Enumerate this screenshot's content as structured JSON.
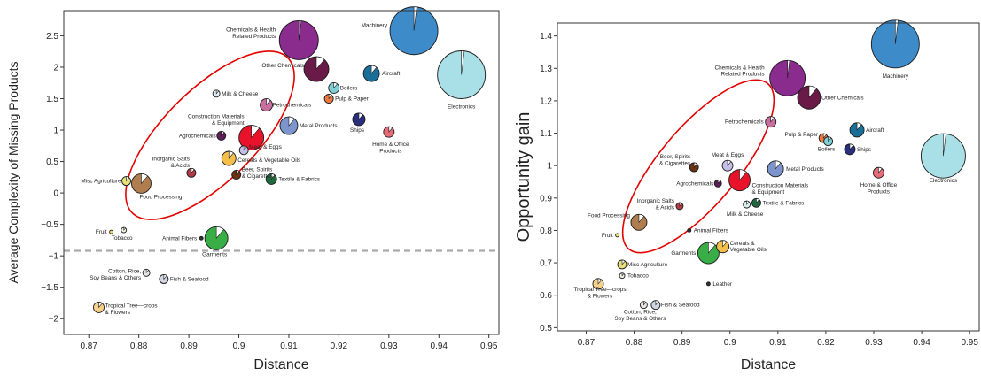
{
  "chart_data": [
    {
      "type": "scatter",
      "title": "",
      "xlabel": "Distance",
      "ylabel": "Average Complexity of Missing Products",
      "xlim": [
        0.865,
        0.952
      ],
      "ylim": [
        -2.25,
        2.9
      ],
      "xticks": [
        "0.87",
        "0.88",
        "0.89",
        "0.9",
        "0.91",
        "0.92",
        "0.93",
        "0.94",
        "0.95"
      ],
      "yticks": [
        "2.5",
        "2",
        "1.5",
        "1",
        "0.5",
        "0",
        "−0.5",
        "−1",
        "−1.5",
        "−2"
      ],
      "reference_line_y": -0.92,
      "highlight_ellipse": true,
      "points": [
        {
          "label": "Machinery",
          "x": 0.935,
          "y": 2.58,
          "color": "#3d8cc9",
          "size": 27
        },
        {
          "label": "Electronics",
          "x": 0.9445,
          "y": 1.88,
          "color": "#a9dfe6",
          "size": 27
        },
        {
          "label": "Chemicals & Health\nRelated Products",
          "x": 0.912,
          "y": 2.43,
          "color": "#8a2b8e",
          "size": 22
        },
        {
          "label": "Other Chemicals",
          "x": 0.9155,
          "y": 1.97,
          "color": "#6a1a47",
          "size": 14
        },
        {
          "label": "Aircraft",
          "x": 0.9265,
          "y": 1.9,
          "color": "#1a6f99",
          "size": 9
        },
        {
          "label": "Boilers",
          "x": 0.919,
          "y": 1.67,
          "color": "#7ecfd6",
          "size": 6
        },
        {
          "label": "Pulp & Paper",
          "x": 0.918,
          "y": 1.5,
          "color": "#f07a3f",
          "size": 5
        },
        {
          "label": "Milk & Cheese",
          "x": 0.8955,
          "y": 1.58,
          "color": "#ddeef0",
          "size": 4
        },
        {
          "label": "Petrochemicals",
          "x": 0.9055,
          "y": 1.4,
          "color": "#c86fa0",
          "size": 7
        },
        {
          "label": "Ships",
          "x": 0.924,
          "y": 1.17,
          "color": "#2a2f7d",
          "size": 7
        },
        {
          "label": "Metal Products",
          "x": 0.91,
          "y": 1.07,
          "color": "#7d95cc",
          "size": 10
        },
        {
          "label": "Construction Materials\n& Equipment",
          "x": 0.9025,
          "y": 0.88,
          "color": "#e8132a",
          "size": 14
        },
        {
          "label": "Agrochemicals",
          "x": 0.8965,
          "y": 0.91,
          "color": "#5c1e56",
          "size": 5
        },
        {
          "label": "Home & Office\nProducts",
          "x": 0.93,
          "y": 0.97,
          "color": "#e86b78",
          "size": 6
        },
        {
          "label": "Meat & Eggs",
          "x": 0.901,
          "y": 0.68,
          "color": "#c6c0e8",
          "size": 5
        },
        {
          "label": "Cereals & Vegetable Oils",
          "x": 0.898,
          "y": 0.55,
          "color": "#f5c04a",
          "size": 8
        },
        {
          "label": "Inorganic Salts\n& Acids",
          "x": 0.8905,
          "y": 0.32,
          "color": "#b23b4a",
          "size": 5
        },
        {
          "label": "Beer, Spirits\n& Cigarettes",
          "x": 0.8995,
          "y": 0.29,
          "color": "#6b3214",
          "size": 5
        },
        {
          "label": "Textile & Fabrics",
          "x": 0.9065,
          "y": 0.22,
          "color": "#1f6b3f",
          "size": 6
        },
        {
          "label": "Misc Agriculture",
          "x": 0.8775,
          "y": 0.19,
          "color": "#e8e07a",
          "size": 5
        },
        {
          "label": "Food Processing",
          "x": 0.8805,
          "y": 0.15,
          "color": "#b07d4e",
          "size": 11
        },
        {
          "label": "Fruit",
          "x": 0.8745,
          "y": -0.62,
          "color": "#f0e070",
          "size": 2
        },
        {
          "label": "Tobacco",
          "x": 0.877,
          "y": -0.59,
          "color": "#f1f1e4",
          "size": 3
        },
        {
          "label": "Animal Fibers",
          "x": 0.8925,
          "y": -0.72,
          "color": "#333333",
          "size": 2
        },
        {
          "label": "Garments",
          "x": 0.8955,
          "y": -0.72,
          "color": "#3aae46",
          "size": 13
        },
        {
          "label": "Cotton, Rice,\nSoy Beans & Others",
          "x": 0.8815,
          "y": -1.27,
          "color": "#e6e6e6",
          "size": 4
        },
        {
          "label": "Fish & Seafood",
          "x": 0.885,
          "y": -1.37,
          "color": "#d0d6e2",
          "size": 5
        },
        {
          "label": "Tropical Tree—crops\n& Flowers",
          "x": 0.872,
          "y": -1.82,
          "color": "#f7d18a",
          "size": 6
        }
      ]
    },
    {
      "type": "scatter",
      "title": "",
      "xlabel": "Distance",
      "ylabel": "Opportunity gain",
      "xlim": [
        0.864,
        0.952
      ],
      "ylim": [
        0.49,
        1.44
      ],
      "xticks": [
        "0.87",
        "0.88",
        "0.89",
        "0.9",
        "0.91",
        "0.92",
        "0.93",
        "0.94",
        "0.95"
      ],
      "yticks": [
        "1.4",
        "1.3",
        "1.2",
        "1.1",
        "1",
        "0.9",
        "0.8",
        "0.7",
        "0.6",
        "0.5"
      ],
      "highlight_ellipse": true,
      "points": [
        {
          "label": "Machinery",
          "x": 0.9345,
          "y": 1.375,
          "color": "#3d8cc9",
          "size": 27
        },
        {
          "label": "Electronics",
          "x": 0.9445,
          "y": 1.03,
          "color": "#a9dfe6",
          "size": 25
        },
        {
          "label": "Chemicals & Health\nRelated Products",
          "x": 0.912,
          "y": 1.27,
          "color": "#8a2b8e",
          "size": 20
        },
        {
          "label": "Other Chemicals",
          "x": 0.9165,
          "y": 1.21,
          "color": "#6a1a47",
          "size": 13
        },
        {
          "label": "Petrochemicals",
          "x": 0.9085,
          "y": 1.135,
          "color": "#c86fa0",
          "size": 6
        },
        {
          "label": "Aircraft",
          "x": 0.9265,
          "y": 1.11,
          "color": "#1a6f99",
          "size": 8
        },
        {
          "label": "Pulp & Paper",
          "x": 0.9195,
          "y": 1.085,
          "color": "#f07a3f",
          "size": 5
        },
        {
          "label": "Boilers",
          "x": 0.9205,
          "y": 1.075,
          "color": "#7ecfd6",
          "size": 5
        },
        {
          "label": "Ships",
          "x": 0.925,
          "y": 1.05,
          "color": "#2a2f7d",
          "size": 6
        },
        {
          "label": "Metal Products",
          "x": 0.9095,
          "y": 0.99,
          "color": "#7d95cc",
          "size": 9
        },
        {
          "label": "Home & Office\nProducts",
          "x": 0.931,
          "y": 0.978,
          "color": "#e86b78",
          "size": 6
        },
        {
          "label": "Meat & Eggs",
          "x": 0.8995,
          "y": 1.0,
          "color": "#c6c0e8",
          "size": 6
        },
        {
          "label": "Beer, Spirits\n& Cigarettes",
          "x": 0.8925,
          "y": 0.995,
          "color": "#6b3214",
          "size": 5
        },
        {
          "label": "Construction Materials\n& Equipment",
          "x": 0.902,
          "y": 0.955,
          "color": "#e8132a",
          "size": 12
        },
        {
          "label": "Agrochemicals",
          "x": 0.8975,
          "y": 0.945,
          "color": "#5c1e56",
          "size": 4
        },
        {
          "label": "Textile & Fabrics",
          "x": 0.9055,
          "y": 0.885,
          "color": "#1f6b3f",
          "size": 5
        },
        {
          "label": "Milk & Cheese",
          "x": 0.9035,
          "y": 0.88,
          "color": "#ddeef0",
          "size": 4
        },
        {
          "label": "Inorganic Salts\n& Acids",
          "x": 0.8895,
          "y": 0.875,
          "color": "#b23b4a",
          "size": 4
        },
        {
          "label": "Food Processing",
          "x": 0.881,
          "y": 0.825,
          "color": "#b07d4e",
          "size": 9
        },
        {
          "label": "Fruit",
          "x": 0.8765,
          "y": 0.785,
          "color": "#f0e070",
          "size": 2
        },
        {
          "label": "Animal Fibers",
          "x": 0.8915,
          "y": 0.8,
          "color": "#333333",
          "size": 2
        },
        {
          "label": "Cereals &\nVegetable Oils",
          "x": 0.8985,
          "y": 0.75,
          "color": "#f5c04a",
          "size": 7
        },
        {
          "label": "Garments",
          "x": 0.8955,
          "y": 0.73,
          "color": "#3aae46",
          "size": 12
        },
        {
          "label": "Misc Agriculture",
          "x": 0.8775,
          "y": 0.695,
          "color": "#e8e07a",
          "size": 5
        },
        {
          "label": "Tobacco",
          "x": 0.8775,
          "y": 0.66,
          "color": "#f1f1e4",
          "size": 3
        },
        {
          "label": "Leather",
          "x": 0.8955,
          "y": 0.635,
          "color": "#333333",
          "size": 2
        },
        {
          "label": "Tropical Tree—crops\n& Flowers",
          "x": 0.8725,
          "y": 0.635,
          "color": "#f7d18a",
          "size": 6
        },
        {
          "label": "Cotton, Rice,\nSoy Beans & Others",
          "x": 0.882,
          "y": 0.57,
          "color": "#e6e6e6",
          "size": 4
        },
        {
          "label": "Fish & Seafood",
          "x": 0.8845,
          "y": 0.57,
          "color": "#d0d6e2",
          "size": 5
        }
      ]
    }
  ]
}
